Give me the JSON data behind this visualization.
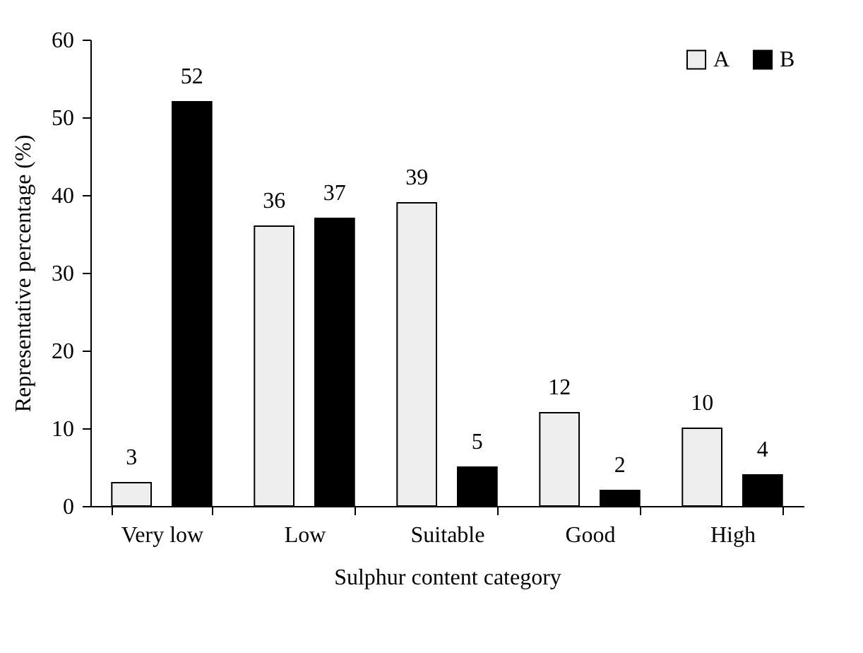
{
  "chart_data": {
    "type": "bar",
    "xlabel": "Sulphur content category",
    "ylabel": "Representative percentage (%)",
    "categories": [
      "Very low",
      "Low",
      "Suitable",
      "Good",
      "High"
    ],
    "series": [
      {
        "name": "A",
        "color": "#eeeeee",
        "values": [
          3,
          36,
          39,
          12,
          10
        ]
      },
      {
        "name": "B",
        "color": "#000000",
        "values": [
          52,
          37,
          5,
          2,
          4
        ]
      }
    ],
    "ylim": [
      0,
      60
    ],
    "yticks": [
      0,
      10,
      20,
      30,
      40,
      50,
      60
    ],
    "grid": false,
    "legend": "top right",
    "data_labels": true
  }
}
